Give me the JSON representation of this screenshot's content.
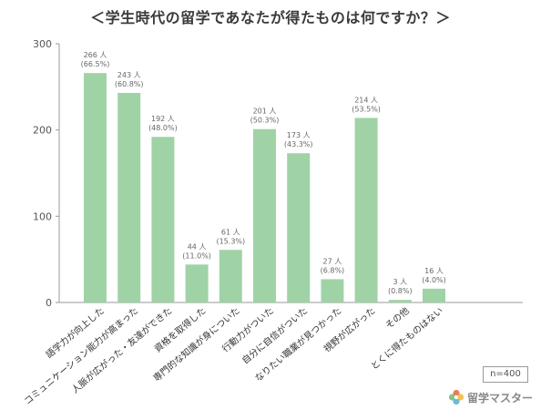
{
  "title": "＜学生時代の留学であなたが得たものは何ですか？＞",
  "sample_note": "n=400",
  "brand": {
    "name": "留学マスター",
    "colors": [
      "#e87c5a",
      "#f2c14e",
      "#6fb9d8",
      "#8cc085"
    ]
  },
  "colors": {
    "bar": "#9fd3a6",
    "axis": "#9a9a9a",
    "grid": "#cfcfcf",
    "label": "#333333",
    "datalabel": "#666666"
  },
  "chart_data": {
    "type": "bar",
    "categories": [
      "語学力が向上した",
      "コミュニケーション能力が高まった",
      "人脈が広がった・友達ができた",
      "資格を取得した",
      "専門的な知識が身についた",
      "行動力がついた",
      "自分に自信がついた",
      "なりたい職業が見つかった",
      "視野が広がった",
      "その他",
      "とくに得たものはない"
    ],
    "values": [
      266,
      243,
      192,
      44,
      61,
      201,
      173,
      27,
      214,
      3,
      16
    ],
    "value_labels": [
      "266 人",
      "243 人",
      "192 人",
      "44 人",
      "61 人",
      "201 人",
      "173 人",
      "27 人",
      "214 人",
      "3 人",
      "16 人"
    ],
    "percent_labels": [
      "(66.5%)",
      "(60.8%)",
      "(48.0%)",
      "(11.0%)",
      "(15.3%)",
      "(50.3%)",
      "(43.3%)",
      "(6.8%)",
      "(53.5%)",
      "(0.8%)",
      "(4.0%)"
    ],
    "ylim": [
      0,
      300
    ],
    "yticks": [
      "0",
      "100",
      "200",
      "300"
    ],
    "xlabel": "",
    "ylabel": "",
    "grid": false,
    "legend": "none"
  }
}
